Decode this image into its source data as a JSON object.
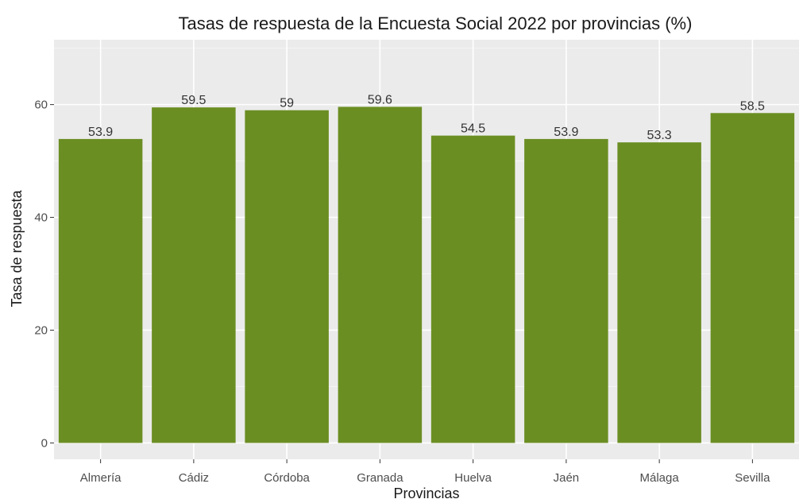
{
  "chart_data": {
    "type": "bar",
    "title": "Tasas de respuesta de la Encuesta Social 2022 por provincias (%)",
    "xlabel": "Provincias",
    "ylabel": "Tasa de respuesta",
    "categories": [
      "Almería",
      "Cádiz",
      "Córdoba",
      "Granada",
      "Huelva",
      "Jaén",
      "Málaga",
      "Sevilla"
    ],
    "values": [
      53.9,
      59.5,
      59,
      59.6,
      54.5,
      53.9,
      53.3,
      58.5
    ],
    "data_labels": [
      "53.9",
      "59.5",
      "59",
      "59.6",
      "54.5",
      "53.9",
      "53.3",
      "58.5"
    ],
    "yticks": [
      0,
      20,
      40,
      60
    ],
    "ytick_labels": [
      "0",
      "20",
      "40",
      "60"
    ],
    "ylim": [
      -2.9,
      71.5
    ],
    "grid": true,
    "legend": "none",
    "colors": {
      "bar": "#6b8e23",
      "panel": "#ebebeb",
      "grid_major": "#ffffff",
      "grid_minor": "#f5f5f5"
    }
  }
}
